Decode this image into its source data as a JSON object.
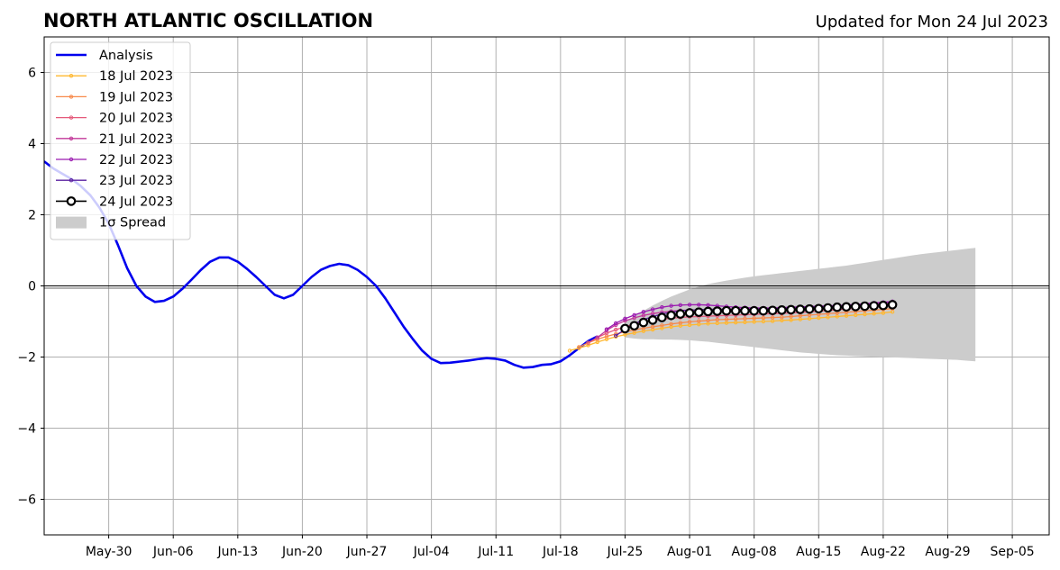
{
  "chart_data": {
    "type": "line",
    "title": "NORTH ATLANTIC OSCILLATION",
    "subtitle": "Updated for Mon 24 Jul 2023",
    "xlabel": "",
    "ylabel": "",
    "ylim": [
      -7,
      7
    ],
    "yticks": [
      -6,
      -4,
      -2,
      0,
      2,
      4,
      6
    ],
    "ytick_labels": [
      "−6",
      "−4",
      "−2",
      "0",
      "2",
      "4",
      "6"
    ],
    "xlim": [
      "2023-05-23",
      "2023-09-09"
    ],
    "xticks": [
      "2023-05-30",
      "2023-06-06",
      "2023-06-13",
      "2023-06-20",
      "2023-06-27",
      "2023-07-04",
      "2023-07-11",
      "2023-07-18",
      "2023-07-25",
      "2023-08-01",
      "2023-08-08",
      "2023-08-15",
      "2023-08-22",
      "2023-08-29",
      "2023-09-05"
    ],
    "xtick_labels": [
      "May-30",
      "Jun-06",
      "Jun-13",
      "Jun-20",
      "Jun-27",
      "Jul-04",
      "Jul-11",
      "Jul-18",
      "Jul-25",
      "Aug-01",
      "Aug-08",
      "Aug-15",
      "Aug-22",
      "Aug-29",
      "Sep-05"
    ],
    "grid": true,
    "legend_position": "top-left",
    "zero_line": true,
    "analysis": {
      "name": "Analysis",
      "color": "#0000ee",
      "start": "2023-05-23",
      "values": [
        3.5,
        3.3,
        3.15,
        3.0,
        2.8,
        2.55,
        2.2,
        1.75,
        1.15,
        0.5,
        0.0,
        -0.3,
        -0.45,
        -0.42,
        -0.3,
        -0.08,
        0.18,
        0.45,
        0.68,
        0.8,
        0.8,
        0.68,
        0.48,
        0.25,
        0.0,
        -0.25,
        -0.35,
        -0.25,
        0.0,
        0.25,
        0.45,
        0.56,
        0.62,
        0.58,
        0.45,
        0.25,
        0.0,
        -0.35,
        -0.75,
        -1.15,
        -1.5,
        -1.82,
        -2.05,
        -2.17,
        -2.16,
        -2.13,
        -2.1,
        -2.06,
        -2.03,
        -2.05,
        -2.1,
        -2.22,
        -2.3,
        -2.28,
        -2.22,
        -2.2,
        -2.12,
        -1.95,
        -1.75,
        -1.55,
        -1.42
      ]
    },
    "forecasts": [
      {
        "name": "18 Jul 2023",
        "color": "#ffb830",
        "start": "2023-07-19",
        "values": [
          -1.82,
          -1.75,
          -1.67,
          -1.58,
          -1.5,
          -1.43,
          -1.37,
          -1.32,
          -1.27,
          -1.23,
          -1.19,
          -1.15,
          -1.12,
          -1.1,
          -1.08,
          -1.06,
          -1.05,
          -1.04,
          -1.03,
          -1.02,
          -1.01,
          -1.0,
          -0.99,
          -0.97,
          -0.96,
          -0.94,
          -0.92,
          -0.9,
          -0.88,
          -0.86,
          -0.84,
          -0.82,
          -0.8,
          -0.78,
          -0.76,
          -0.73
        ]
      },
      {
        "name": "19 Jul 2023",
        "color": "#f8894a",
        "start": "2023-07-20",
        "values": [
          -1.72,
          -1.6,
          -1.5,
          -1.42,
          -1.35,
          -1.29,
          -1.24,
          -1.19,
          -1.15,
          -1.11,
          -1.07,
          -1.04,
          -1.01,
          -0.99,
          -0.97,
          -0.95,
          -0.94,
          -0.93,
          -0.92,
          -0.91,
          -0.9,
          -0.89,
          -0.88,
          -0.86,
          -0.84,
          -0.82,
          -0.8,
          -0.78,
          -0.76,
          -0.74,
          -0.72,
          -0.7,
          -0.68,
          -0.66,
          -0.64
        ]
      },
      {
        "name": "20 Jul 2023",
        "color": "#e5597a",
        "start": "2023-07-21",
        "values": [
          -1.6,
          -1.45,
          -1.33,
          -1.23,
          -1.15,
          -1.08,
          -1.03,
          -0.98,
          -0.94,
          -0.91,
          -0.89,
          -0.87,
          -0.86,
          -0.85,
          -0.84,
          -0.83,
          -0.82,
          -0.81,
          -0.8,
          -0.79,
          -0.78,
          -0.77,
          -0.76,
          -0.75,
          -0.73,
          -0.71,
          -0.69,
          -0.67,
          -0.65,
          -0.63,
          -0.61,
          -0.59,
          -0.57,
          -0.55
        ]
      },
      {
        "name": "21 Jul 2023",
        "color": "#c2389a",
        "start": "2023-07-22",
        "values": [
          -1.45,
          -1.25,
          -1.1,
          -0.98,
          -0.9,
          -0.83,
          -0.78,
          -0.74,
          -0.71,
          -0.69,
          -0.68,
          -0.67,
          -0.66,
          -0.66,
          -0.65,
          -0.65,
          -0.64,
          -0.64,
          -0.63,
          -0.63,
          -0.62,
          -0.61,
          -0.6,
          -0.59,
          -0.58,
          -0.57,
          -0.56,
          -0.55,
          -0.54,
          -0.52,
          -0.5,
          -0.48,
          -0.46
        ]
      },
      {
        "name": "22 Jul 2023",
        "color": "#9a1ab0",
        "start": "2023-07-23",
        "values": [
          -1.22,
          -1.05,
          -0.92,
          -0.82,
          -0.73,
          -0.66,
          -0.6,
          -0.56,
          -0.54,
          -0.53,
          -0.53,
          -0.54,
          -0.56,
          -0.58,
          -0.6,
          -0.61,
          -0.62,
          -0.62,
          -0.62,
          -0.61,
          -0.6,
          -0.59,
          -0.58,
          -0.57,
          -0.56,
          -0.55,
          -0.54,
          -0.52,
          -0.5,
          -0.48,
          -0.46,
          -0.44
        ]
      },
      {
        "name": "23 Jul 2023",
        "color": "#5a1fa0",
        "start": "2023-07-24",
        "values": [
          -1.4,
          -1.22,
          -1.07,
          -0.95,
          -0.86,
          -0.79,
          -0.74,
          -0.7,
          -0.68,
          -0.67,
          -0.66,
          -0.66,
          -0.66,
          -0.66,
          -0.66,
          -0.65,
          -0.65,
          -0.64,
          -0.63,
          -0.62,
          -0.61,
          -0.6,
          -0.59,
          -0.58,
          -0.57,
          -0.56,
          -0.55,
          -0.54,
          -0.53,
          -0.52,
          -0.51
        ]
      },
      {
        "name": "24 Jul 2023",
        "color": "#000000",
        "start": "2023-07-25",
        "marker": "open-circle",
        "values": [
          -1.2,
          -1.12,
          -1.03,
          -0.96,
          -0.89,
          -0.83,
          -0.79,
          -0.76,
          -0.74,
          -0.72,
          -0.71,
          -0.7,
          -0.7,
          -0.7,
          -0.7,
          -0.7,
          -0.69,
          -0.68,
          -0.67,
          -0.66,
          -0.65,
          -0.64,
          -0.62,
          -0.6,
          -0.59,
          -0.58,
          -0.57,
          -0.56,
          -0.55,
          -0.53
        ]
      }
    ],
    "spread": {
      "name": "1σ Spread",
      "color": "#cccccc",
      "start": "2023-07-25",
      "upper": [
        -1.0,
        -0.85,
        -0.7,
        -0.55,
        -0.42,
        -0.3,
        -0.2,
        -0.1,
        -0.02,
        0.05,
        0.1,
        0.15,
        0.19,
        0.23,
        0.27,
        0.3,
        0.33,
        0.36,
        0.39,
        0.42,
        0.45,
        0.48,
        0.51,
        0.54,
        0.57,
        0.61,
        0.65,
        0.69,
        0.73,
        0.77,
        0.81,
        0.85,
        0.89,
        0.92,
        0.95,
        0.98,
        1.01,
        1.04,
        1.07
      ],
      "lower": [
        -1.45,
        -1.48,
        -1.5,
        -1.5,
        -1.51,
        -1.51,
        -1.52,
        -1.53,
        -1.55,
        -1.57,
        -1.6,
        -1.63,
        -1.66,
        -1.69,
        -1.72,
        -1.75,
        -1.78,
        -1.81,
        -1.84,
        -1.87,
        -1.89,
        -1.91,
        -1.93,
        -1.95,
        -1.96,
        -1.97,
        -1.98,
        -1.99,
        -2.0,
        -2.01,
        -2.02,
        -2.03,
        -2.04,
        -2.05,
        -2.06,
        -2.07,
        -2.08,
        -2.1,
        -2.12
      ]
    }
  }
}
